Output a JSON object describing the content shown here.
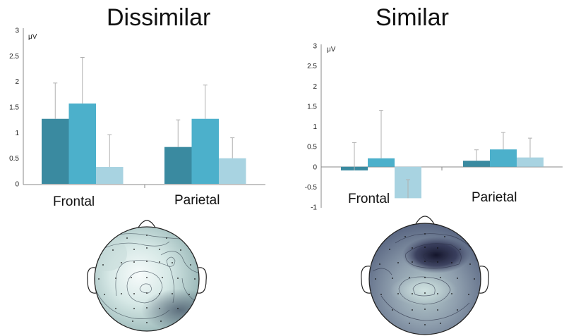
{
  "chart_data": [
    {
      "type": "bar",
      "title": "Dissimilar",
      "ylabel": "μV",
      "categories": [
        "Frontal",
        "Parietal"
      ],
      "ylim": [
        0,
        3
      ],
      "yticks": [
        "0",
        "0.5",
        "1",
        "1.5",
        "2",
        "2.5",
        "3"
      ],
      "series": [
        {
          "values": [
            1.27,
            0.72
          ],
          "errors": [
            0.7,
            0.53
          ],
          "color": "#3a8aa0"
        },
        {
          "values": [
            1.57,
            1.27
          ],
          "errors": [
            0.9,
            0.66
          ],
          "color": "#4cb0cb"
        },
        {
          "values": [
            0.33,
            0.5
          ],
          "errors": [
            0.63,
            0.4
          ],
          "color": "#a8d3e1"
        }
      ]
    },
    {
      "type": "bar",
      "title": "Similar",
      "ylabel": "μV",
      "categories": [
        "Frontal",
        "Parietal"
      ],
      "ylim": [
        -1,
        3
      ],
      "yticks": [
        "-1",
        "-0.5",
        "0",
        "0.5",
        "1",
        "1.5",
        "2",
        "2.5",
        "3"
      ],
      "series": [
        {
          "values": [
            -0.09,
            0.15
          ],
          "errors": [
            0.69,
            0.27
          ],
          "color": "#3a8aa0"
        },
        {
          "values": [
            0.21,
            0.43
          ],
          "errors": [
            1.19,
            0.42
          ],
          "color": "#4cb0cb"
        },
        {
          "values": [
            -0.78,
            0.23
          ],
          "errors": [
            0.46,
            0.48
          ],
          "color": "#a8d3e1"
        }
      ]
    }
  ],
  "topomaps": [
    {
      "name": "dissimilar-scalp-map",
      "style": "light"
    },
    {
      "name": "similar-scalp-map",
      "style": "dark"
    }
  ]
}
